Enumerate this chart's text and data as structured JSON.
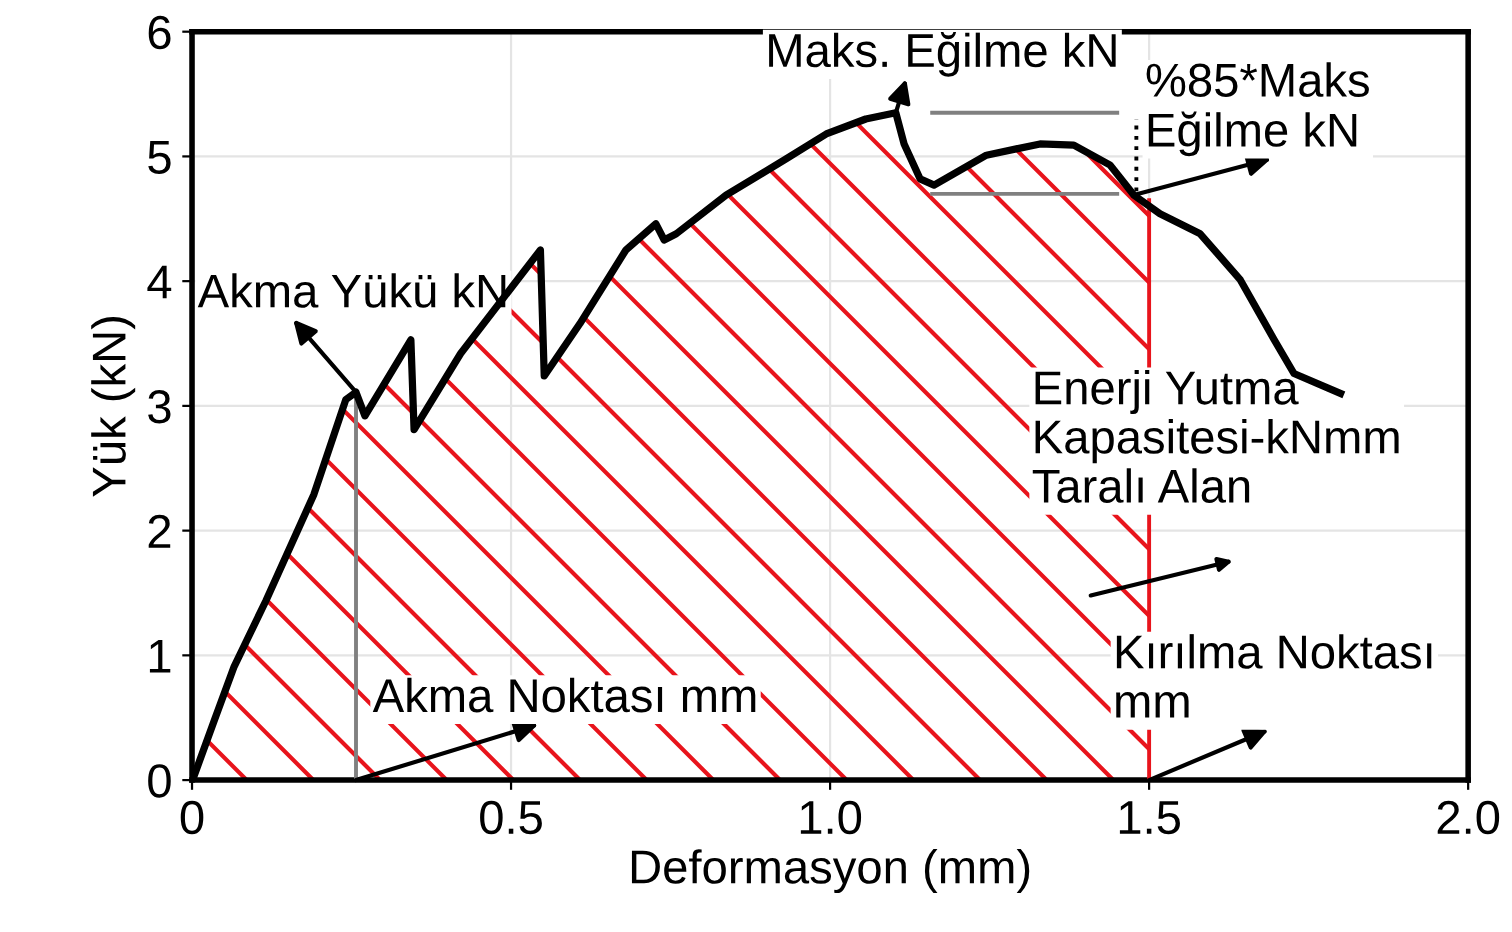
{
  "chart_data": {
    "type": "line",
    "xlabel": "Deformasyon (mm)",
    "ylabel": "Yük (kN)",
    "xlim": [
      0,
      2
    ],
    "ylim": [
      0,
      6
    ],
    "xticks": [
      0,
      0.5,
      {
        "value": 1.0,
        "label": "1.0"
      },
      1.5,
      {
        "value": 2.0,
        "label": "2.0"
      }
    ],
    "yticks": [
      0,
      1,
      2,
      3,
      4,
      5,
      6
    ],
    "grid": true,
    "legend": false,
    "series": [
      {
        "type": "area",
        "color": "#e8141c",
        "x": [
          0.003,
          0.035,
          0.066,
          0.116,
          0.191,
          0.241,
          0.257,
          0.271,
          0.343,
          0.348,
          0.421,
          0.546,
          0.552,
          0.608,
          0.68,
          0.727,
          0.74,
          0.759,
          0.837,
          0.931,
          0.994,
          1.056,
          1.103,
          1.116,
          1.141,
          1.163,
          1.245,
          1.329,
          1.382,
          1.439,
          1.476,
          1.5
        ],
        "values": [
          0.03,
          0.48,
          0.91,
          1.44,
          2.29,
          3.05,
          3.11,
          2.92,
          3.53,
          2.81,
          3.42,
          4.25,
          3.24,
          3.66,
          4.25,
          4.46,
          4.33,
          4.38,
          4.69,
          4.98,
          5.18,
          5.3,
          5.35,
          5.1,
          4.82,
          4.77,
          5.01,
          5.1,
          5.09,
          4.93,
          4.69,
          4.65
        ]
      },
      {
        "color": "#000000",
        "x": [
          0.003,
          0.035,
          0.066,
          0.116,
          0.191,
          0.241,
          0.257,
          0.271,
          0.343,
          0.348,
          0.421,
          0.546,
          0.552,
          0.608,
          0.68,
          0.727,
          0.74,
          0.759,
          0.837,
          0.931,
          0.994,
          1.056,
          1.103,
          1.116,
          1.141,
          1.163,
          1.245,
          1.329,
          1.382,
          1.439,
          1.476,
          1.517,
          1.58,
          1.643,
          1.696,
          1.727,
          1.8
        ],
        "values": [
          0.03,
          0.48,
          0.91,
          1.44,
          2.29,
          3.05,
          3.11,
          2.92,
          3.53,
          2.81,
          3.42,
          4.25,
          3.24,
          3.66,
          4.25,
          4.46,
          4.33,
          4.38,
          4.69,
          4.98,
          5.18,
          5.3,
          5.35,
          5.1,
          4.82,
          4.77,
          5.01,
          5.1,
          5.09,
          4.93,
          4.69,
          4.54,
          4.38,
          4.01,
          3.53,
          3.26,
          3.1
        ]
      },
      {
        "color": "#e8141c",
        "x": [
          1.5,
          1.5
        ],
        "values": [
          0,
          4.65
        ]
      },
      {
        "color": "#808080",
        "x": [
          0.257,
          0.257
        ],
        "values": [
          0,
          3.11
        ]
      },
      {
        "color": "#808080",
        "x": [
          1.16,
          1.45
        ],
        "values": [
          5.35,
          5.35
        ]
      },
      {
        "color": "#808080",
        "x": [
          1.16,
          1.45
        ],
        "values": [
          4.7,
          4.7
        ]
      },
      {
        "color": "#000000",
        "line_style": "dotted",
        "x": [
          1.48,
          1.48
        ],
        "values": [
          4.72,
          5.3
        ]
      }
    ],
    "annotations": [
      {
        "text": "Akma Yükü kN",
        "x": 0.257,
        "y": 3.11
      },
      {
        "text": "Maks. Eğilme kN",
        "x": 1.103,
        "y": 5.35
      },
      {
        "text": "%85*Maks\nEğilme kN",
        "x": 1.476,
        "y": 4.69
      },
      "Enerji Yutma\nKapasitesi-kNmm\nTaralı Alan",
      {
        "text": "Akma Noktası mm",
        "x": 0.257,
        "y": 0
      },
      {
        "text": "Kırılma Noktası\nmm",
        "x": 1.5,
        "y": 0
      }
    ]
  }
}
